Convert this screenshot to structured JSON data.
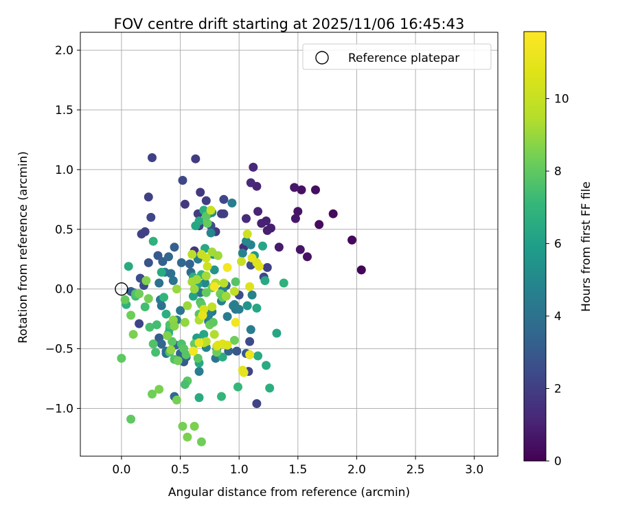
{
  "chart_data": {
    "type": "scatter",
    "title": "FOV centre drift starting at 2025/11/06 16:45:43",
    "xlabel": "Angular distance from reference (arcmin)",
    "ylabel": "Rotation from reference (arcmin)",
    "xlim": [
      -0.35,
      3.2
    ],
    "ylim": [
      -1.4,
      2.15
    ],
    "xticks": [
      0.0,
      0.5,
      1.0,
      1.5,
      2.0,
      2.5,
      3.0
    ],
    "xtick_labels": [
      "0.0",
      "0.5",
      "1.0",
      "1.5",
      "2.0",
      "2.5",
      "3.0"
    ],
    "yticks": [
      -1.0,
      -0.5,
      0.0,
      0.5,
      1.0,
      1.5,
      2.0
    ],
    "ytick_labels": [
      "−1.0",
      "−0.5",
      "0.0",
      "0.5",
      "1.0",
      "1.5",
      "2.0"
    ],
    "grid": true,
    "legend": {
      "label": "Reference platepar",
      "position": "top-right"
    },
    "reference": {
      "x": 0.0,
      "y": 0.0
    },
    "colorbar": {
      "label": "Hours from first FF file",
      "cmap": "viridis",
      "range": [
        0,
        11.85
      ],
      "ticks": [
        0,
        2,
        4,
        6,
        8,
        10
      ],
      "tick_labels": [
        "0",
        "2",
        "4",
        "6",
        "8",
        "10"
      ]
    },
    "points": [
      {
        "x": 2.04,
        "y": 0.16,
        "h": 0.1
      },
      {
        "x": 1.96,
        "y": 0.41,
        "h": 0.2
      },
      {
        "x": 1.8,
        "y": 0.63,
        "h": 0.3
      },
      {
        "x": 1.68,
        "y": 0.54,
        "h": 0.3
      },
      {
        "x": 1.65,
        "y": 0.83,
        "h": 0.4
      },
      {
        "x": 1.58,
        "y": 0.27,
        "h": 0.5
      },
      {
        "x": 1.53,
        "y": 0.83,
        "h": 0.5
      },
      {
        "x": 1.52,
        "y": 0.33,
        "h": 0.6
      },
      {
        "x": 1.5,
        "y": 0.65,
        "h": 0.6
      },
      {
        "x": 1.48,
        "y": 0.59,
        "h": 0.7
      },
      {
        "x": 1.47,
        "y": 0.85,
        "h": 0.7
      },
      {
        "x": 1.34,
        "y": 0.35,
        "h": 0.8
      },
      {
        "x": 1.27,
        "y": 0.51,
        "h": 0.9
      },
      {
        "x": 1.24,
        "y": 0.49,
        "h": 0.9
      },
      {
        "x": 1.23,
        "y": 0.57,
        "h": 1.0
      },
      {
        "x": 1.19,
        "y": 0.55,
        "h": 1.0
      },
      {
        "x": 1.16,
        "y": 0.65,
        "h": 1.1
      },
      {
        "x": 1.15,
        "y": 0.86,
        "h": 1.1
      },
      {
        "x": 1.12,
        "y": 1.02,
        "h": 1.2
      },
      {
        "x": 1.1,
        "y": 0.89,
        "h": 1.3
      },
      {
        "x": 1.06,
        "y": 0.59,
        "h": 1.3
      },
      {
        "x": 1.04,
        "y": 0.35,
        "h": 1.4
      },
      {
        "x": 1.24,
        "y": 0.18,
        "h": 2.0
      },
      {
        "x": 1.21,
        "y": 0.1,
        "h": 2.3
      },
      {
        "x": 1.15,
        "y": -0.96,
        "h": 2.2
      },
      {
        "x": 1.09,
        "y": -0.44,
        "h": 2.4
      },
      {
        "x": 1.09,
        "y": -0.55,
        "h": 2.6
      },
      {
        "x": 1.1,
        "y": 0.2,
        "h": 2.6
      },
      {
        "x": 1.04,
        "y": -0.69,
        "h": 2.4
      },
      {
        "x": 1.08,
        "y": -0.69,
        "h": 2.2
      },
      {
        "x": 1.06,
        "y": -0.54,
        "h": 3.0
      },
      {
        "x": 1.0,
        "y": -0.05,
        "h": 2.5
      },
      {
        "x": 0.98,
        "y": -0.52,
        "h": 2.9
      },
      {
        "x": 0.91,
        "y": -0.52,
        "h": 3.4
      },
      {
        "x": 0.89,
        "y": 0.03,
        "h": 3.2
      },
      {
        "x": 0.87,
        "y": 0.75,
        "h": 2.3
      },
      {
        "x": 0.87,
        "y": 0.63,
        "h": 2.1
      },
      {
        "x": 0.85,
        "y": 0.63,
        "h": 1.9
      },
      {
        "x": 0.8,
        "y": 0.48,
        "h": 1.8
      },
      {
        "x": 0.76,
        "y": 0.53,
        "h": 2.6
      },
      {
        "x": 0.74,
        "y": 0.63,
        "h": 2.3
      },
      {
        "x": 0.72,
        "y": 0.74,
        "h": 2.0
      },
      {
        "x": 0.67,
        "y": 0.81,
        "h": 1.8
      },
      {
        "x": 0.66,
        "y": 0.53,
        "h": 2.2
      },
      {
        "x": 0.65,
        "y": 0.63,
        "h": 1.9
      },
      {
        "x": 0.63,
        "y": 1.09,
        "h": 1.9
      },
      {
        "x": 0.62,
        "y": 0.32,
        "h": 1.7
      },
      {
        "x": 0.54,
        "y": 0.71,
        "h": 1.8
      },
      {
        "x": 0.52,
        "y": 0.91,
        "h": 2.3
      },
      {
        "x": 0.26,
        "y": 1.1,
        "h": 2.1
      },
      {
        "x": 0.23,
        "y": 0.77,
        "h": 2.1
      },
      {
        "x": 0.25,
        "y": 0.6,
        "h": 2.3
      },
      {
        "x": 0.2,
        "y": 0.48,
        "h": 2.1
      },
      {
        "x": 0.17,
        "y": 0.46,
        "h": 2.1
      },
      {
        "x": 0.16,
        "y": 0.09,
        "h": 2.5
      },
      {
        "x": 0.15,
        "y": -0.29,
        "h": 2.2
      },
      {
        "x": 0.19,
        "y": 0.03,
        "h": 2.4
      },
      {
        "x": 0.1,
        "y": -0.03,
        "h": 3.0
      },
      {
        "x": 0.08,
        "y": -0.02,
        "h": 3.2
      },
      {
        "x": 0.23,
        "y": 0.22,
        "h": 2.8
      },
      {
        "x": 0.31,
        "y": 0.28,
        "h": 3.0
      },
      {
        "x": 0.35,
        "y": 0.23,
        "h": 3.3
      },
      {
        "x": 0.4,
        "y": 0.27,
        "h": 3.5
      },
      {
        "x": 0.45,
        "y": 0.35,
        "h": 3.2
      },
      {
        "x": 0.51,
        "y": 0.22,
        "h": 3.6
      },
      {
        "x": 0.58,
        "y": 0.21,
        "h": 3.4
      },
      {
        "x": 0.59,
        "y": 0.14,
        "h": 3.7
      },
      {
        "x": 0.32,
        "y": 0.05,
        "h": 3.9
      },
      {
        "x": 0.37,
        "y": 0.14,
        "h": 4.2
      },
      {
        "x": 0.42,
        "y": 0.13,
        "h": 3.9
      },
      {
        "x": 0.44,
        "y": 0.07,
        "h": 4.0
      },
      {
        "x": 0.34,
        "y": -0.14,
        "h": 4.0
      },
      {
        "x": 0.33,
        "y": -0.09,
        "h": 4.3
      },
      {
        "x": 0.5,
        "y": -0.18,
        "h": 4.2
      },
      {
        "x": 0.47,
        "y": -0.26,
        "h": 4.5
      },
      {
        "x": 0.32,
        "y": -0.41,
        "h": 3.1
      },
      {
        "x": 0.34,
        "y": -0.46,
        "h": 3.5
      },
      {
        "x": 0.38,
        "y": -0.52,
        "h": 4.0
      },
      {
        "x": 0.38,
        "y": -0.54,
        "h": 3.8
      },
      {
        "x": 0.45,
        "y": -0.9,
        "h": 3.6
      },
      {
        "x": 0.46,
        "y": -0.47,
        "h": 3.6
      },
      {
        "x": 0.5,
        "y": -0.54,
        "h": 3.4
      },
      {
        "x": 0.53,
        "y": -0.61,
        "h": 3.1
      },
      {
        "x": 0.55,
        "y": -0.57,
        "h": 3.4
      },
      {
        "x": 0.67,
        "y": -0.03,
        "h": 4.0
      },
      {
        "x": 0.65,
        "y": 0.25,
        "h": 4.4
      },
      {
        "x": 0.77,
        "y": -0.19,
        "h": 4.2
      },
      {
        "x": 0.74,
        "y": -0.27,
        "h": 4.0
      },
      {
        "x": 0.66,
        "y": -0.69,
        "h": 4.5
      },
      {
        "x": 0.74,
        "y": -0.22,
        "h": 4.7
      },
      {
        "x": 0.72,
        "y": -0.49,
        "h": 4.8
      },
      {
        "x": 0.8,
        "y": -0.58,
        "h": 4.2
      },
      {
        "x": 0.81,
        "y": -0.5,
        "h": 4.0
      },
      {
        "x": 0.85,
        "y": -0.1,
        "h": 4.7
      },
      {
        "x": 0.86,
        "y": -0.01,
        "h": 4.8
      },
      {
        "x": 0.9,
        "y": -0.23,
        "h": 4.4
      },
      {
        "x": 0.95,
        "y": -0.14,
        "h": 4.6
      },
      {
        "x": 0.97,
        "y": -0.17,
        "h": 4.2
      },
      {
        "x": 1.0,
        "y": -0.17,
        "h": 4.6
      },
      {
        "x": 1.1,
        "y": -0.34,
        "h": 4.5
      },
      {
        "x": 1.11,
        "y": -0.05,
        "h": 4.8
      },
      {
        "x": 1.1,
        "y": 0.37,
        "h": 4.8
      },
      {
        "x": 1.06,
        "y": 0.4,
        "h": 5.0
      },
      {
        "x": 1.03,
        "y": 0.3,
        "h": 4.8
      },
      {
        "x": 0.96,
        "y": -0.13,
        "h": 4.6
      },
      {
        "x": 0.94,
        "y": 0.72,
        "h": 4.5
      },
      {
        "x": 0.77,
        "y": 0.64,
        "h": 5.1
      },
      {
        "x": 0.76,
        "y": 0.47,
        "h": 4.9
      },
      {
        "x": 0.78,
        "y": 0.29,
        "h": 5.2
      },
      {
        "x": 0.71,
        "y": 0.05,
        "h": 5.0
      },
      {
        "x": 0.79,
        "y": 0.16,
        "h": 5.5
      },
      {
        "x": 1.07,
        "y": -0.14,
        "h": 5.5
      },
      {
        "x": 1.13,
        "y": 0.28,
        "h": 5.7
      },
      {
        "x": 1.15,
        "y": -0.16,
        "h": 6.3
      },
      {
        "x": 1.2,
        "y": 0.36,
        "h": 6.3
      },
      {
        "x": 1.22,
        "y": 0.07,
        "h": 6.4
      },
      {
        "x": 1.23,
        "y": -0.64,
        "h": 6.5
      },
      {
        "x": 1.26,
        "y": -0.83,
        "h": 6.7
      },
      {
        "x": 1.32,
        "y": -0.37,
        "h": 6.3
      },
      {
        "x": 1.38,
        "y": 0.05,
        "h": 6.8
      },
      {
        "x": 1.16,
        "y": -0.56,
        "h": 6.5
      },
      {
        "x": 0.7,
        "y": 0.66,
        "h": 6.6
      },
      {
        "x": 0.71,
        "y": 0.34,
        "h": 6.4
      },
      {
        "x": 0.66,
        "y": 0.57,
        "h": 6.5
      },
      {
        "x": 0.63,
        "y": 0.53,
        "h": 6.3
      },
      {
        "x": 0.65,
        "y": 0.04,
        "h": 6.0
      },
      {
        "x": 0.61,
        "y": 0.1,
        "h": 6.6
      },
      {
        "x": 0.68,
        "y": 0.12,
        "h": 6.9
      },
      {
        "x": 0.61,
        "y": -0.06,
        "h": 6.2
      },
      {
        "x": 0.64,
        "y": -0.41,
        "h": 6.0
      },
      {
        "x": 0.66,
        "y": -0.62,
        "h": 6.4
      },
      {
        "x": 0.7,
        "y": -0.38,
        "h": 6.3
      },
      {
        "x": 0.66,
        "y": -0.91,
        "h": 6.5
      },
      {
        "x": 0.85,
        "y": -0.9,
        "h": 7.0
      },
      {
        "x": 0.99,
        "y": -0.82,
        "h": 7.1
      },
      {
        "x": 0.86,
        "y": -0.57,
        "h": 6.6
      },
      {
        "x": 0.4,
        "y": -0.37,
        "h": 6.6
      },
      {
        "x": 0.41,
        "y": -0.33,
        "h": 6.8
      },
      {
        "x": 0.38,
        "y": -0.21,
        "h": 6.7
      },
      {
        "x": 0.36,
        "y": -0.07,
        "h": 7.0
      },
      {
        "x": 0.34,
        "y": 0.14,
        "h": 6.5
      },
      {
        "x": 0.27,
        "y": 0.4,
        "h": 6.8
      },
      {
        "x": 0.06,
        "y": 0.19,
        "h": 6.5
      },
      {
        "x": 0.04,
        "y": -0.13,
        "h": 6.8
      },
      {
        "x": 0.12,
        "y": -0.06,
        "h": 7.4
      },
      {
        "x": 0.2,
        "y": -0.15,
        "h": 7.4
      },
      {
        "x": 0.12,
        "y": -0.04,
        "h": 7.7
      },
      {
        "x": 0.24,
        "y": -0.32,
        "h": 7.5
      },
      {
        "x": 0.27,
        "y": -0.46,
        "h": 7.7
      },
      {
        "x": 0.29,
        "y": -0.53,
        "h": 7.5
      },
      {
        "x": 0.3,
        "y": -0.3,
        "h": 7.4
      },
      {
        "x": 0.41,
        "y": -0.3,
        "h": 7.6
      },
      {
        "x": 0.41,
        "y": -0.53,
        "h": 7.7
      },
      {
        "x": 0.43,
        "y": -0.44,
        "h": 7.9
      },
      {
        "x": 0.45,
        "y": -0.59,
        "h": 7.7
      },
      {
        "x": 0.51,
        "y": -0.46,
        "h": 7.6
      },
      {
        "x": 0.53,
        "y": -0.5,
        "h": 7.9
      },
      {
        "x": 0.55,
        "y": -0.55,
        "h": 7.8
      },
      {
        "x": 0.56,
        "y": -0.77,
        "h": 7.9
      },
      {
        "x": 0.54,
        "y": -0.8,
        "h": 7.5
      },
      {
        "x": 0.61,
        "y": -0.52,
        "h": 7.9
      },
      {
        "x": 0.62,
        "y": -0.46,
        "h": 8.1
      },
      {
        "x": 0.65,
        "y": -0.58,
        "h": 7.9
      },
      {
        "x": 0.66,
        "y": -0.21,
        "h": 7.8
      },
      {
        "x": 0.67,
        "y": -0.11,
        "h": 7.7
      },
      {
        "x": 0.68,
        "y": -0.13,
        "h": 7.9
      },
      {
        "x": 0.72,
        "y": -0.03,
        "h": 8.1
      },
      {
        "x": 0.75,
        "y": -0.3,
        "h": 8.2
      },
      {
        "x": 0.78,
        "y": -0.28,
        "h": 8.0
      },
      {
        "x": 0.81,
        "y": -0.53,
        "h": 8.2
      },
      {
        "x": 0.84,
        "y": -0.04,
        "h": 8.3
      },
      {
        "x": 0.86,
        "y": -0.07,
        "h": 8.0
      },
      {
        "x": 0.97,
        "y": 0.06,
        "h": 7.8
      },
      {
        "x": 0.96,
        "y": -0.43,
        "h": 8.3
      },
      {
        "x": 0.73,
        "y": 0.55,
        "h": 8.1
      },
      {
        "x": 0.77,
        "y": 0.01,
        "h": 8.2
      },
      {
        "x": 0.72,
        "y": 0.61,
        "h": 7.9
      },
      {
        "x": 0.78,
        "y": 0.02,
        "h": 8.3
      },
      {
        "x": 0.0,
        "y": -0.58,
        "h": 8.0
      },
      {
        "x": 0.08,
        "y": -1.09,
        "h": 8.0
      },
      {
        "x": 0.03,
        "y": -0.09,
        "h": 8.1
      },
      {
        "x": 0.08,
        "y": -0.22,
        "h": 8.3
      },
      {
        "x": 0.1,
        "y": -0.38,
        "h": 8.5
      },
      {
        "x": 0.15,
        "y": -0.04,
        "h": 8.3
      },
      {
        "x": 0.21,
        "y": 0.07,
        "h": 8.6
      },
      {
        "x": 0.23,
        "y": -0.08,
        "h": 8.4
      },
      {
        "x": 0.26,
        "y": -0.88,
        "h": 8.3
      },
      {
        "x": 0.32,
        "y": -0.84,
        "h": 8.5
      },
      {
        "x": 0.47,
        "y": -0.93,
        "h": 8.4
      },
      {
        "x": 0.48,
        "y": -0.6,
        "h": 8.3
      },
      {
        "x": 0.52,
        "y": -1.15,
        "h": 8.4
      },
      {
        "x": 0.56,
        "y": -1.24,
        "h": 8.5
      },
      {
        "x": 0.62,
        "y": -1.15,
        "h": 8.5
      },
      {
        "x": 0.68,
        "y": -1.28,
        "h": 8.3
      },
      {
        "x": 0.39,
        "y": -0.39,
        "h": 8.6
      },
      {
        "x": 0.44,
        "y": -0.26,
        "h": 8.8
      },
      {
        "x": 0.45,
        "y": -0.31,
        "h": 8.7
      },
      {
        "x": 0.42,
        "y": -0.51,
        "h": 8.9
      },
      {
        "x": 0.47,
        "y": 0.0,
        "h": 9.0
      },
      {
        "x": 0.54,
        "y": -0.28,
        "h": 8.9
      },
      {
        "x": 0.56,
        "y": -0.14,
        "h": 9.0
      },
      {
        "x": 0.6,
        "y": 0.06,
        "h": 9.2
      },
      {
        "x": 0.62,
        "y": 0.0,
        "h": 9.0
      },
      {
        "x": 0.64,
        "y": 0.08,
        "h": 9.1
      },
      {
        "x": 0.72,
        "y": 0.11,
        "h": 9.2
      },
      {
        "x": 0.77,
        "y": 0.31,
        "h": 9.2
      },
      {
        "x": 0.8,
        "y": 0.05,
        "h": 9.4
      },
      {
        "x": 0.82,
        "y": 0.28,
        "h": 9.1
      },
      {
        "x": 0.89,
        "y": -0.06,
        "h": 9.1
      },
      {
        "x": 0.66,
        "y": -0.26,
        "h": 9.4
      },
      {
        "x": 0.7,
        "y": -0.45,
        "h": 9.7
      },
      {
        "x": 0.72,
        "y": -0.44,
        "h": 9.6
      },
      {
        "x": 0.77,
        "y": -0.15,
        "h": 9.8
      },
      {
        "x": 0.79,
        "y": -0.38,
        "h": 9.4
      },
      {
        "x": 0.81,
        "y": -0.48,
        "h": 9.8
      },
      {
        "x": 0.73,
        "y": 0.19,
        "h": 10.2
      },
      {
        "x": 0.76,
        "y": 0.66,
        "h": 10.0
      },
      {
        "x": 0.72,
        "y": 0.26,
        "h": 10.2
      },
      {
        "x": 0.68,
        "y": 0.29,
        "h": 10.0
      },
      {
        "x": 0.6,
        "y": 0.29,
        "h": 9.6
      },
      {
        "x": 0.87,
        "y": 0.05,
        "h": 9.6
      },
      {
        "x": 0.96,
        "y": -0.02,
        "h": 9.8
      },
      {
        "x": 1.02,
        "y": 0.23,
        "h": 10.0
      },
      {
        "x": 1.07,
        "y": 0.46,
        "h": 10.2
      },
      {
        "x": 1.15,
        "y": 0.22,
        "h": 10.6
      },
      {
        "x": 1.11,
        "y": 0.26,
        "h": 10.9
      },
      {
        "x": 1.17,
        "y": 0.19,
        "h": 10.8
      },
      {
        "x": 1.09,
        "y": 0.02,
        "h": 10.7
      },
      {
        "x": 1.03,
        "y": -0.68,
        "h": 10.8
      },
      {
        "x": 1.04,
        "y": -0.7,
        "h": 11.0
      },
      {
        "x": 1.09,
        "y": -0.55,
        "h": 11.2
      },
      {
        "x": 0.97,
        "y": -0.28,
        "h": 11.4
      },
      {
        "x": 0.9,
        "y": -0.47,
        "h": 10.6
      },
      {
        "x": 0.86,
        "y": -0.46,
        "h": 10.7
      },
      {
        "x": 0.82,
        "y": -0.47,
        "h": 10.8
      },
      {
        "x": 0.79,
        "y": 0.02,
        "h": 11.6
      },
      {
        "x": 0.9,
        "y": 0.18,
        "h": 11.5
      },
      {
        "x": 0.7,
        "y": -0.17,
        "h": 10.5
      },
      {
        "x": 0.69,
        "y": -0.22,
        "h": 11.0
      },
      {
        "x": 0.66,
        "y": -0.45,
        "h": 11.2
      },
      {
        "x": 0.61,
        "y": -0.52,
        "h": 11.5
      }
    ]
  }
}
